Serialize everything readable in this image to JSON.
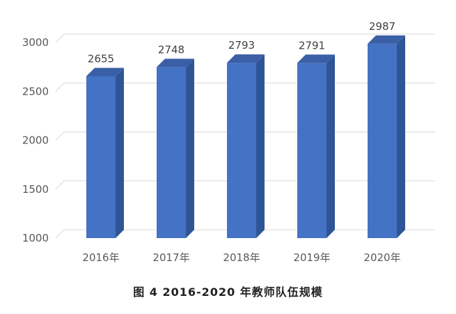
{
  "chart_data": {
    "type": "bar",
    "categories": [
      "2016年",
      "2017年",
      "2018年",
      "2019年",
      "2020年"
    ],
    "values": [
      2655,
      2748,
      2793,
      2791,
      2987
    ],
    "ylim": [
      1000,
      3000
    ],
    "yticks": [
      1000,
      1500,
      2000,
      2500,
      3000
    ],
    "grid": true,
    "style": "3d-column",
    "colors": {
      "front": "#4472C4",
      "side": "#2F5597",
      "top": "#3A5FA6"
    }
  },
  "caption": "图 4   2016-2020 年教师队伍规模"
}
